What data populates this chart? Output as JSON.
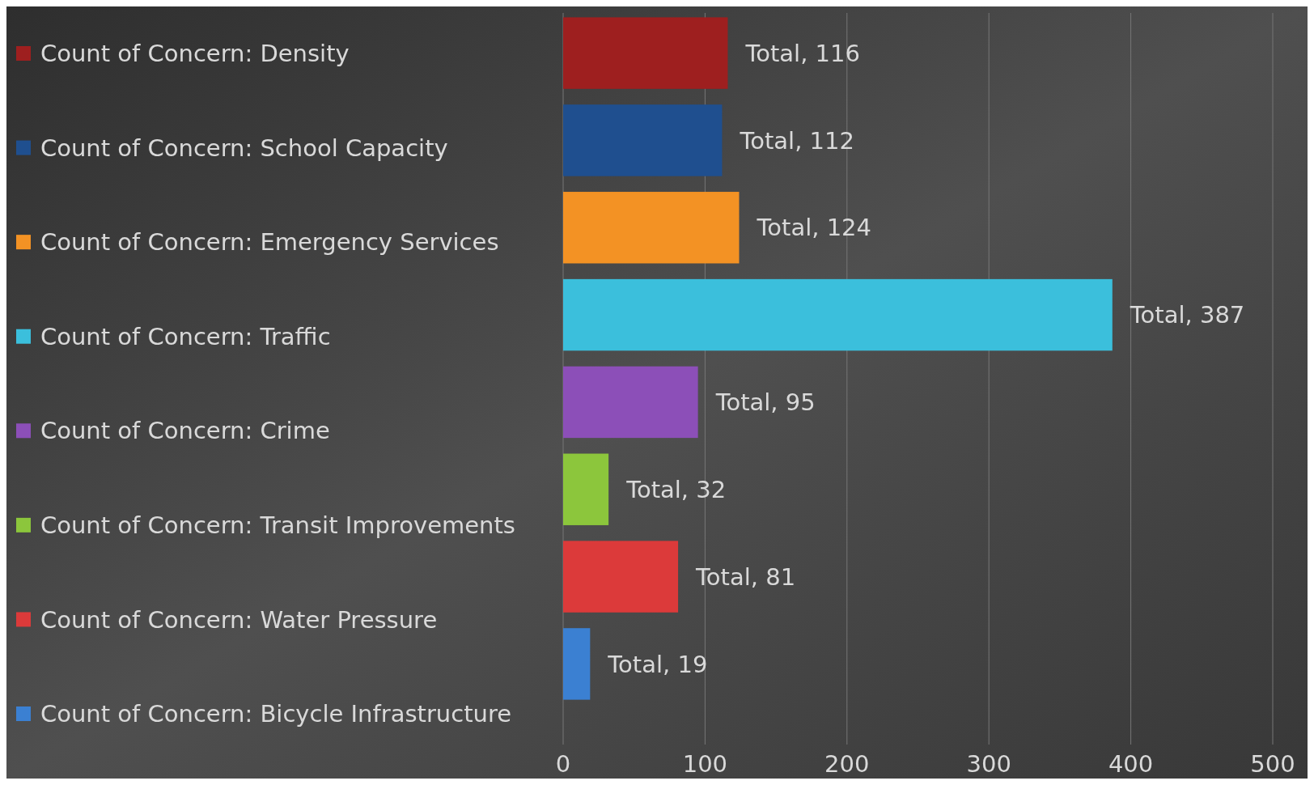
{
  "chart_data": {
    "type": "bar",
    "orientation": "horizontal",
    "categories": [
      null
    ],
    "series": [
      {
        "name": "Count of Concern: Density",
        "color": "#9e1f1f",
        "values": [
          116
        ],
        "value_labels": [
          "Total, 116"
        ]
      },
      {
        "name": "Count of Concern: School Capacity",
        "color": "#1f4f8f",
        "values": [
          112
        ],
        "value_labels": [
          "Total, 112"
        ]
      },
      {
        "name": "Count of Concern: Emergency Services",
        "color": "#f39224",
        "values": [
          124
        ],
        "value_labels": [
          "Total, 124"
        ]
      },
      {
        "name": "Count of Concern: Traffic",
        "color": "#3bbfdc",
        "values": [
          387
        ],
        "value_labels": [
          "Total, 387"
        ]
      },
      {
        "name": "Count of Concern: Crime",
        "color": "#8c4fb8",
        "values": [
          95
        ],
        "value_labels": [
          "Total, 95"
        ]
      },
      {
        "name": "Count of Concern: Transit Improvements",
        "color": "#8cc63c",
        "values": [
          32
        ],
        "value_labels": [
          "Total, 32"
        ]
      },
      {
        "name": "Count of Concern: Water Pressure",
        "color": "#dc3a3a",
        "values": [
          81
        ],
        "value_labels": [
          "Total, 81"
        ]
      },
      {
        "name": "Count of Concern: Bicycle Infrastructure",
        "color": "#3b80d2",
        "values": [
          19
        ],
        "value_labels": [
          "Total, 19"
        ]
      }
    ],
    "xlim": [
      0,
      500
    ],
    "xticks": [
      0,
      100,
      200,
      300,
      400,
      500
    ],
    "grid": "x",
    "legend": "left"
  }
}
